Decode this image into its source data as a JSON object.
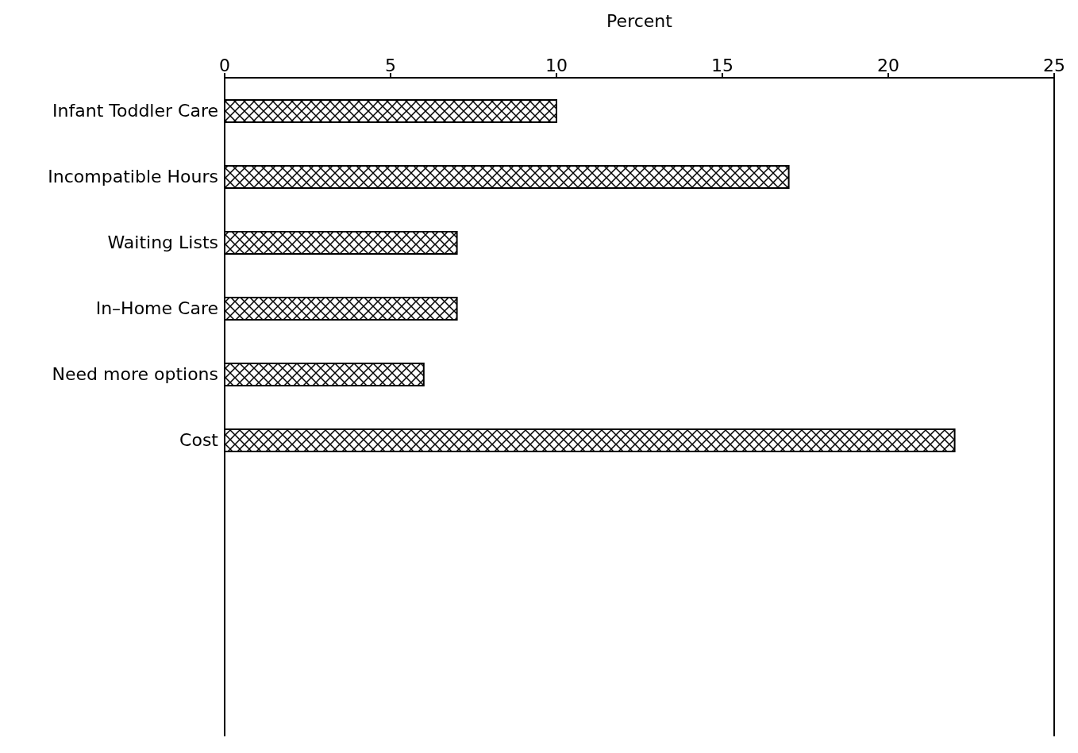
{
  "chart_data": {
    "type": "bar",
    "orientation": "horizontal",
    "xlabel": "Percent",
    "categories": [
      "Infant Toddler Care",
      "Incompatible Hours",
      "Waiting Lists",
      "In–Home Care",
      "Need more options",
      "Cost",
      null,
      null,
      null,
      null
    ],
    "values": [
      10,
      17,
      7,
      7,
      6,
      22,
      null,
      null,
      null,
      null
    ],
    "color": "#000000",
    "xlim": [
      0,
      25
    ],
    "xticks": [
      0,
      5,
      10,
      15,
      20,
      25
    ],
    "grid": false,
    "legend": false
  }
}
